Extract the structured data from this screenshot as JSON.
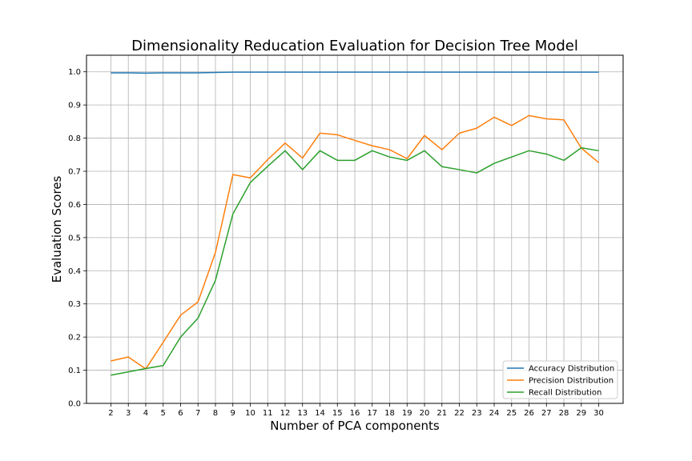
{
  "chart_data": {
    "type": "line",
    "title": "Dimensionality Reducation Evaluation for Decision Tree Model",
    "xlabel": "Number of PCA components",
    "ylabel": "Evaluation Scores",
    "x": [
      2,
      3,
      4,
      5,
      6,
      7,
      8,
      9,
      10,
      11,
      12,
      13,
      14,
      15,
      16,
      17,
      18,
      19,
      20,
      21,
      22,
      23,
      24,
      25,
      26,
      27,
      28,
      29,
      30
    ],
    "xlim": [
      0.6,
      31.4
    ],
    "ylim": [
      0.0,
      1.05
    ],
    "yticks": [
      0.0,
      0.1,
      0.2,
      0.3,
      0.4,
      0.5,
      0.6,
      0.7,
      0.8,
      0.9,
      1.0
    ],
    "ytick_labels": [
      "0.0",
      "0.1",
      "0.2",
      "0.3",
      "0.4",
      "0.5",
      "0.6",
      "0.7",
      "0.8",
      "0.9",
      "1.0"
    ],
    "grid": true,
    "legend_position": "lower-right",
    "series": [
      {
        "name": "Accuracy Distribution",
        "color": "#1f77b4",
        "values": [
          0.997,
          0.997,
          0.996,
          0.997,
          0.997,
          0.997,
          0.998,
          0.999,
          0.999,
          0.999,
          0.999,
          0.999,
          0.999,
          0.999,
          0.999,
          0.999,
          0.999,
          0.999,
          0.999,
          0.999,
          0.999,
          0.999,
          0.999,
          0.999,
          0.999,
          0.999,
          0.999,
          0.999,
          0.999
        ]
      },
      {
        "name": "Precision Distribution",
        "color": "#ff7f0e",
        "values": [
          0.128,
          0.14,
          0.104,
          0.184,
          0.266,
          0.306,
          0.455,
          0.69,
          0.68,
          0.735,
          0.785,
          0.74,
          0.815,
          0.81,
          0.793,
          0.777,
          0.765,
          0.738,
          0.808,
          0.765,
          0.815,
          0.83,
          0.863,
          0.838,
          0.868,
          0.858,
          0.855,
          0.77,
          0.726
        ]
      },
      {
        "name": "Recall Distribution",
        "color": "#2ca02c",
        "values": [
          0.085,
          0.095,
          0.105,
          0.114,
          0.2,
          0.257,
          0.371,
          0.571,
          0.666,
          0.715,
          0.762,
          0.705,
          0.762,
          0.733,
          0.733,
          0.762,
          0.743,
          0.733,
          0.762,
          0.714,
          0.705,
          0.695,
          0.724,
          0.743,
          0.762,
          0.752,
          0.733,
          0.771,
          0.762
        ]
      }
    ]
  }
}
